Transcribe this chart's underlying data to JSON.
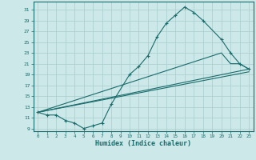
{
  "xlabel": "Humidex (Indice chaleur)",
  "bg_color": "#cce8e8",
  "line_color": "#1a6b6b",
  "grid_color": "#a8cccc",
  "xlim": [
    -0.5,
    23.5
  ],
  "ylim": [
    8.5,
    32.5
  ],
  "xticks": [
    0,
    1,
    2,
    3,
    4,
    5,
    6,
    7,
    8,
    9,
    10,
    11,
    12,
    13,
    14,
    15,
    16,
    17,
    18,
    19,
    20,
    21,
    22,
    23
  ],
  "yticks": [
    9,
    11,
    13,
    15,
    17,
    19,
    21,
    23,
    25,
    27,
    29,
    31
  ],
  "curve1_x": [
    0,
    1,
    2,
    3,
    4,
    5,
    6,
    7,
    8,
    10,
    11,
    12,
    13,
    14,
    15,
    16,
    17,
    18,
    20,
    21,
    22,
    23
  ],
  "curve1_y": [
    12,
    11.5,
    11.5,
    10.5,
    10,
    9,
    9.5,
    10,
    13.5,
    19,
    20.5,
    22.5,
    26,
    28.5,
    30,
    31.5,
    30.5,
    29,
    25.5,
    23,
    21,
    20
  ],
  "curve2_x": [
    0,
    20,
    21,
    22,
    23
  ],
  "curve2_y": [
    12,
    23,
    21,
    21,
    20
  ],
  "curve3_x": [
    0,
    23
  ],
  "curve3_y": [
    12,
    20
  ],
  "curve4_x": [
    0,
    23
  ],
  "curve4_y": [
    12,
    19.5
  ]
}
